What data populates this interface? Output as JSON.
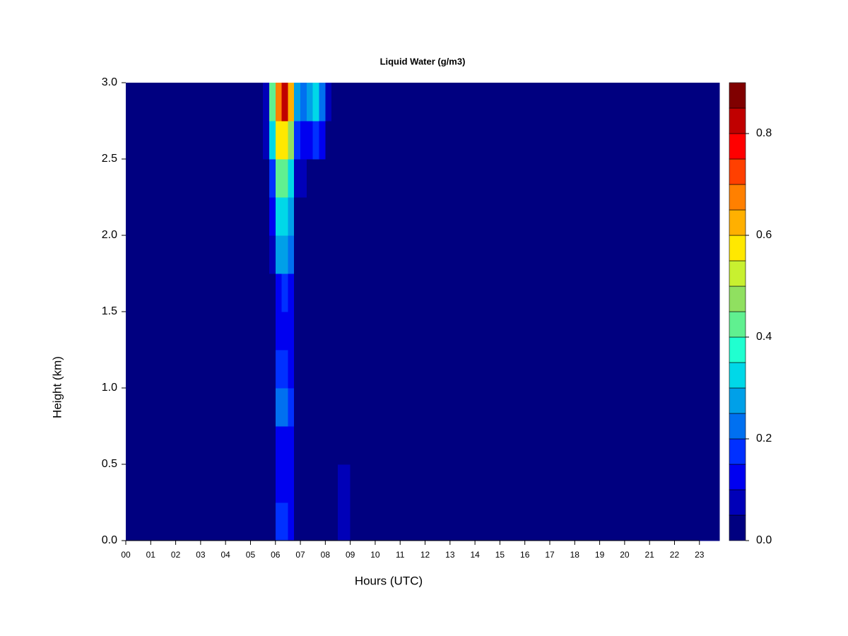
{
  "chart_data": {
    "type": "heatmap",
    "title": "Liquid Water (g/m3)",
    "xlabel": "Hours (UTC)",
    "ylabel": "Height (km)",
    "xbins": [
      0,
      5.5,
      5.75,
      6,
      6.25,
      6.5,
      6.75,
      7,
      7.25,
      7.5,
      7.75,
      8,
      8.25,
      8.5,
      9,
      9.5,
      10,
      23.8
    ],
    "ybins": [
      0,
      0.25,
      0.5,
      0.75,
      1,
      1.25,
      1.5,
      1.75,
      2,
      2.25,
      2.5,
      2.75,
      3
    ],
    "z": [
      [
        0,
        0,
        0.02,
        0.15,
        0.15,
        0.12,
        0,
        0,
        0,
        0,
        0,
        0,
        0,
        0.05,
        0.04,
        0.03,
        0
      ],
      [
        0,
        0,
        0.02,
        0.12,
        0.12,
        0.1,
        0,
        0,
        0,
        0,
        0,
        0,
        0,
        0.05,
        0.03,
        0.02,
        0
      ],
      [
        0,
        0,
        0.02,
        0.12,
        0.13,
        0.1,
        0,
        0,
        0,
        0,
        0,
        0,
        0,
        0.04,
        0.02,
        0.01,
        0
      ],
      [
        0,
        0,
        0.02,
        0.2,
        0.22,
        0.18,
        0,
        0,
        0,
        0,
        0,
        0,
        0,
        0.03,
        0.01,
        0.01,
        0
      ],
      [
        0,
        0,
        0.02,
        0.15,
        0.18,
        0.14,
        0,
        0,
        0,
        0,
        0,
        0,
        0,
        0,
        0,
        0,
        0
      ],
      [
        0,
        0,
        0.02,
        0.12,
        0.12,
        0.1,
        0,
        0,
        0,
        0,
        0,
        0,
        0,
        0,
        0,
        0,
        0
      ],
      [
        0,
        0,
        0.03,
        0.14,
        0.15,
        0.12,
        0,
        0,
        0,
        0,
        0,
        0,
        0,
        0,
        0,
        0,
        0
      ],
      [
        0,
        0,
        0.05,
        0.25,
        0.28,
        0.22,
        0.02,
        0,
        0,
        0,
        0,
        0,
        0,
        0,
        0,
        0,
        0
      ],
      [
        0,
        0,
        0.1,
        0.32,
        0.35,
        0.28,
        0.04,
        0.02,
        0,
        0,
        0,
        0,
        0,
        0,
        0,
        0,
        0
      ],
      [
        0,
        0.02,
        0.18,
        0.4,
        0.42,
        0.33,
        0.08,
        0.05,
        0.04,
        0.03,
        0.02,
        0,
        0,
        0,
        0,
        0,
        0
      ],
      [
        0,
        0.05,
        0.3,
        0.55,
        0.58,
        0.45,
        0.15,
        0.12,
        0.12,
        0.15,
        0.1,
        0.03,
        0,
        0,
        0,
        0,
        0
      ],
      [
        0,
        0.08,
        0.4,
        0.7,
        0.8,
        0.6,
        0.25,
        0.2,
        0.25,
        0.3,
        0.2,
        0.05,
        0,
        0,
        0,
        0,
        0
      ]
    ],
    "xlim": [
      0,
      23.8
    ],
    "ylim": [
      0,
      3
    ],
    "zlim": [
      0,
      0.9
    ],
    "xticks": [
      {
        "value": 0,
        "label": "00"
      },
      {
        "value": 1,
        "label": "01"
      },
      {
        "value": 2,
        "label": "02"
      },
      {
        "value": 3,
        "label": "03"
      },
      {
        "value": 4,
        "label": "04"
      },
      {
        "value": 5,
        "label": "05"
      },
      {
        "value": 6,
        "label": "06"
      },
      {
        "value": 7,
        "label": "07"
      },
      {
        "value": 8,
        "label": "08"
      },
      {
        "value": 9,
        "label": "09"
      },
      10,
      11,
      12,
      13,
      14,
      15,
      16,
      17,
      18,
      19,
      20,
      21,
      22,
      23
    ],
    "yticks": [
      {
        "value": 0,
        "label": "0.0"
      },
      {
        "value": 0.5,
        "label": "0.5"
      },
      {
        "value": 1,
        "label": "1.0"
      },
      {
        "value": 1.5,
        "label": "1.5"
      },
      {
        "value": 2,
        "label": "2.0"
      },
      {
        "value": 2.5,
        "label": "2.5"
      },
      {
        "value": 3,
        "label": "3.0"
      }
    ],
    "zticks": [
      {
        "value": 0,
        "label": "0.0"
      },
      {
        "value": 0.2,
        "label": "0.2"
      },
      {
        "value": 0.4,
        "label": "0.4"
      },
      {
        "value": 0.6,
        "label": "0.6"
      },
      {
        "value": 0.8,
        "label": "0.8"
      }
    ],
    "colorscale": [
      "#000080",
      "#0000B8",
      "#0000F0",
      "#0030FF",
      "#0070F0",
      "#00A0E8",
      "#00D8E8",
      "#20FFD0",
      "#60F090",
      "#90E060",
      "#C8F030",
      "#FFE800",
      "#FFB000",
      "#FF8000",
      "#FF4000",
      "#FF0000",
      "#C00000",
      "#800000"
    ]
  }
}
